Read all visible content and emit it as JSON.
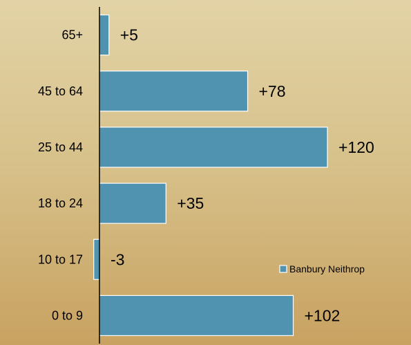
{
  "chart_data": {
    "type": "bar",
    "orientation": "horizontal",
    "categories": [
      "65+",
      "45 to 64",
      "25 to 44",
      "18 to 24",
      "10 to 17",
      "0 to 9"
    ],
    "series": [
      {
        "name": "Banbury Neithrop",
        "values": [
          5,
          78,
          120,
          35,
          -3,
          102
        ],
        "labels": [
          "+5",
          "+78",
          "+120",
          "+35",
          "-3",
          "+102"
        ],
        "color": "#4f93b0"
      }
    ],
    "title": "",
    "xlabel": "",
    "ylabel": "",
    "xlim": [
      -5,
      200
    ],
    "grid": false,
    "legend": {
      "position": "bottom-right",
      "entries": [
        "Banbury Neithrop"
      ]
    }
  },
  "colors": {
    "bar_fill": "#4f93b0",
    "bar_stroke": "#ffffff",
    "axis": "#000000"
  }
}
